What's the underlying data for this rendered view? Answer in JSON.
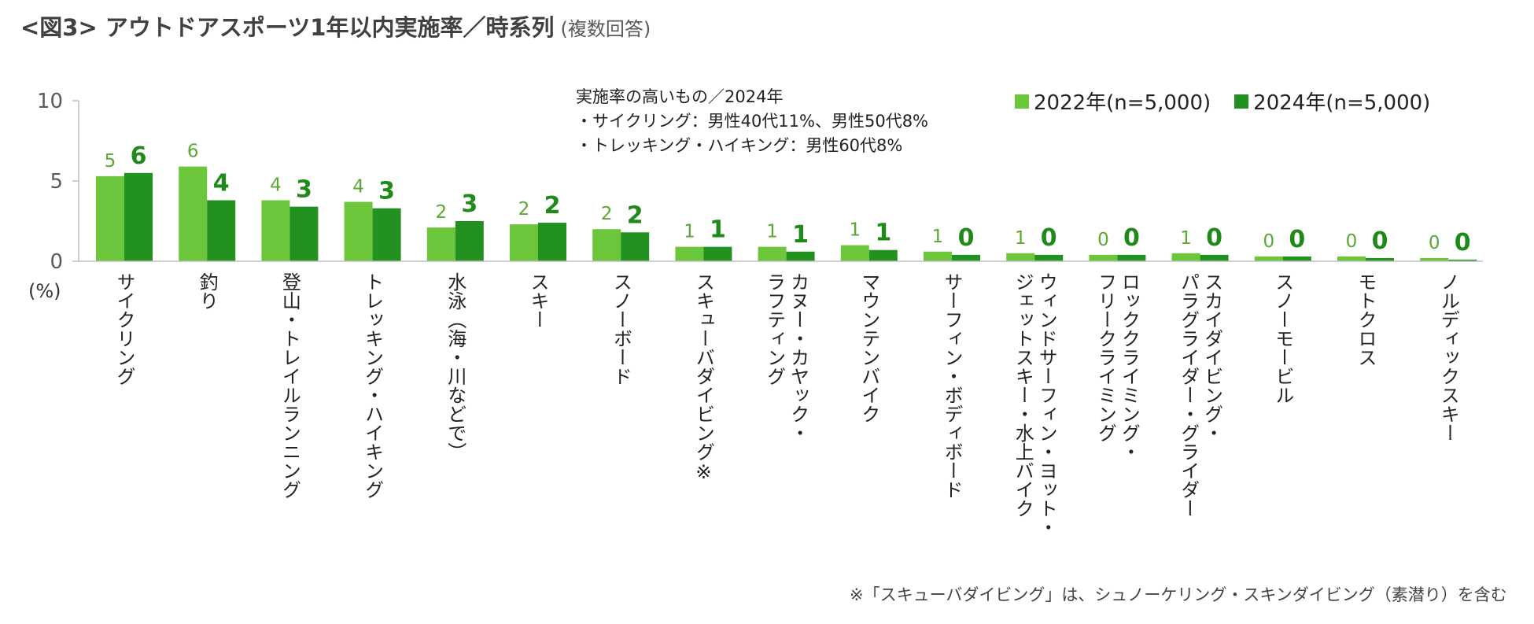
{
  "title": "<図3> アウトドアスポーツ1年以内実施率／時系列",
  "subtitle": "(複数回答)",
  "annotation": {
    "heading": "実施率の高いもの／2024年",
    "lines": [
      "・サイクリング：男性40代11%、男性50代8%",
      "・トレッキング・ハイキング：男性60代8%"
    ]
  },
  "unit_label": "(%)",
  "footnote": "※「スキューバダイビング」は、シュノーケリング・スキンダイビング（素潜り）を含む",
  "colors": {
    "series_2022": "#6cc63c",
    "series_2024": "#23911f",
    "label_2022": "#5aa832",
    "label_2024": "#1f8a1a",
    "axis": "#bfbfbf"
  },
  "chart_data": {
    "type": "bar",
    "title": "アウトドアスポーツ1年以内実施率／時系列",
    "ylim": [
      0,
      10
    ],
    "yticks": [
      "0",
      "5",
      "10"
    ],
    "ylabel": "(%)",
    "categories": [
      "サイクリング",
      "釣り",
      "登山・トレイルランニング",
      "トレッキング・ハイキング",
      "水泳（海・川などで）",
      "スキー",
      "スノーボード",
      "スキューバダイビング※",
      "カヌー・カヤック・ラフティング",
      "マウンテンバイク",
      "サーフィン・ボディボード",
      "ウィンドサーフィン・ヨット・ジェットスキー・水上バイク",
      "ロッククライミング・フリークライミング",
      "スカイダイビング・パラグライダー・グライダー",
      "スノーモービル",
      "モトクロス",
      "ノルディックスキー"
    ],
    "category_lines": [
      [
        "サイクリング"
      ],
      [
        "釣り"
      ],
      [
        "登山・トレイルランニング"
      ],
      [
        "トレッキング・ハイキング"
      ],
      [
        "水泳（海・川などで）"
      ],
      [
        "スキー"
      ],
      [
        "スノーボード"
      ],
      [
        "スキューバダイビング※"
      ],
      [
        "カヌー・カヤック・",
        "ラフティング"
      ],
      [
        "マウンテンバイク"
      ],
      [
        "サーフィン・ボディボード"
      ],
      [
        "ウィンドサーフィン・ヨット・",
        "ジェットスキー・水上バイク"
      ],
      [
        "ロッククライミング・",
        "フリークライミング"
      ],
      [
        "スカイダイビング・",
        "パラグライダー・グライダー"
      ],
      [
        "スノーモービル"
      ],
      [
        "モトクロス"
      ],
      [
        "ノルディックスキー"
      ]
    ],
    "series": [
      {
        "name": "2022年(n=5,000)",
        "values": [
          5.3,
          5.9,
          3.8,
          3.7,
          2.1,
          2.3,
          2.0,
          0.9,
          0.9,
          1.0,
          0.6,
          0.5,
          0.4,
          0.5,
          0.3,
          0.3,
          0.2
        ],
        "labels": [
          "5",
          "6",
          "4",
          "4",
          "2",
          "2",
          "2",
          "1",
          "1",
          "1",
          "1",
          "1",
          "0",
          "1",
          "0",
          "0",
          "0"
        ]
      },
      {
        "name": "2024年(n=5,000)",
        "values": [
          5.5,
          3.8,
          3.4,
          3.3,
          2.5,
          2.4,
          1.8,
          0.9,
          0.6,
          0.7,
          0.4,
          0.4,
          0.4,
          0.4,
          0.3,
          0.2,
          0.1
        ],
        "labels": [
          "6",
          "4",
          "3",
          "3",
          "3",
          "2",
          "2",
          "1",
          "1",
          "1",
          "0",
          "0",
          "0",
          "0",
          "0",
          "0",
          "0"
        ]
      }
    ]
  }
}
